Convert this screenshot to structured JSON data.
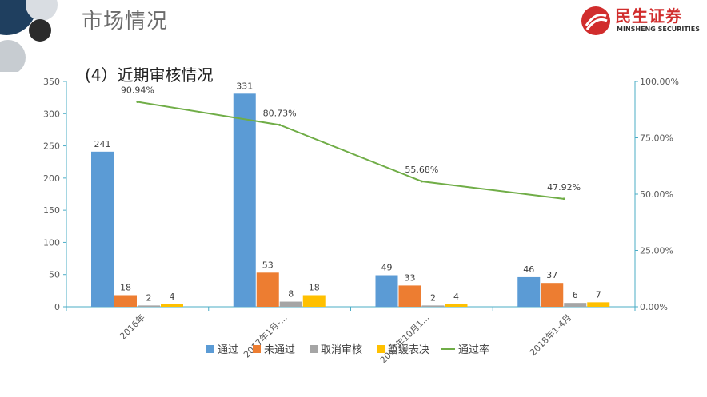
{
  "header": {
    "title": "市场情况",
    "subtitle": "(4）近期审核情况",
    "logo_name": "民生证券",
    "logo_en": "MINSHENG SECURITIES"
  },
  "colors": {
    "pass": "#5b9bd5",
    "fail": "#ed7d31",
    "cancel": "#a5a5a5",
    "defer": "#ffc000",
    "rate": "#70ad47",
    "axis": "#4bacc6",
    "brand": "#d12d2d"
  },
  "chart_data": {
    "type": "bar",
    "categories": [
      "2016年",
      "2017年1月-...",
      "2017年10月1...",
      "2018年1-4月"
    ],
    "series": [
      {
        "name": "通过",
        "values": [
          241,
          331,
          49,
          46
        ]
      },
      {
        "name": "未通过",
        "values": [
          18,
          53,
          33,
          37
        ]
      },
      {
        "name": "取消审核",
        "values": [
          2,
          8,
          2,
          6
        ]
      },
      {
        "name": "暂缓表决",
        "values": [
          4,
          18,
          4,
          7
        ]
      }
    ],
    "line_series": {
      "name": "通过率",
      "values": [
        90.94,
        80.73,
        55.68,
        47.92
      ],
      "labels": [
        "90.94%",
        "80.73%",
        "55.68%",
        "47.92%"
      ]
    },
    "ylim": [
      0,
      350
    ],
    "yticks": [
      0,
      50,
      100,
      150,
      200,
      250,
      300,
      350
    ],
    "ytick_labels": [
      "0",
      "50",
      "100",
      "150",
      "200",
      "250",
      "300",
      "350"
    ],
    "y2lim": [
      0,
      100
    ],
    "y2ticks": [
      0,
      25,
      50,
      75,
      100
    ],
    "y2tick_labels": [
      "0.00%",
      "25.00%",
      "50.00%",
      "75.00%",
      "100.00%"
    ],
    "legend_position": "bottom",
    "grid": false
  }
}
